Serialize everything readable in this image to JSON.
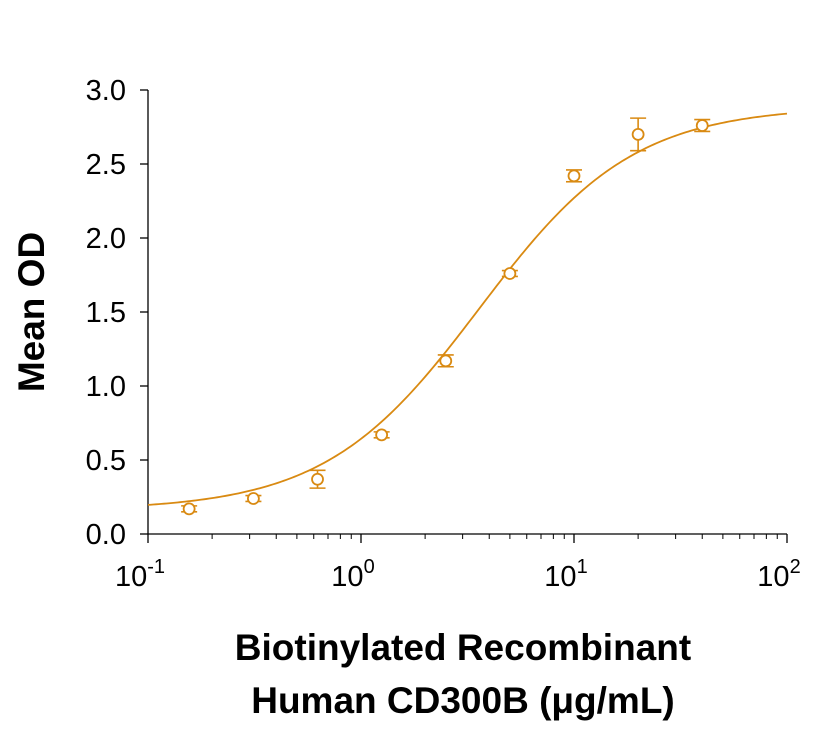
{
  "chart_data": {
    "type": "scatter",
    "title": "",
    "xlabel_lines": [
      "Biotinylated Recombinant",
      "Human CD300B (μg/mL)"
    ],
    "ylabel": "Mean OD",
    "x_scale": "log",
    "xlim": [
      0.1,
      100
    ],
    "ylim": [
      0,
      3.0
    ],
    "grid": false,
    "legend": "none",
    "color": "#D98A12",
    "y_ticks": [
      "0.0",
      "0.5",
      "1.0",
      "1.5",
      "2.0",
      "2.5",
      "3.0"
    ],
    "x_ticks": [
      {
        "base": "10",
        "exp": "-1"
      },
      {
        "base": "10",
        "exp": "0"
      },
      {
        "base": "10",
        "exp": "1"
      },
      {
        "base": "10",
        "exp": "2"
      }
    ],
    "points": [
      {
        "x": 0.156,
        "y": 0.17,
        "err": 0.02
      },
      {
        "x": 0.3125,
        "y": 0.24,
        "err": 0.02
      },
      {
        "x": 0.625,
        "y": 0.37,
        "err": 0.06
      },
      {
        "x": 1.25,
        "y": 0.67,
        "err": 0.02
      },
      {
        "x": 2.5,
        "y": 1.17,
        "err": 0.04
      },
      {
        "x": 5,
        "y": 1.76,
        "err": 0.02
      },
      {
        "x": 10,
        "y": 2.42,
        "err": 0.04
      },
      {
        "x": 20,
        "y": 2.7,
        "err": 0.11
      },
      {
        "x": 40,
        "y": 2.76,
        "err": 0.04
      }
    ],
    "fit_curve": {
      "model": "4PL",
      "bottom": 0.16,
      "top": 2.89,
      "ec50": 3.6,
      "hill": 1.2
    }
  }
}
